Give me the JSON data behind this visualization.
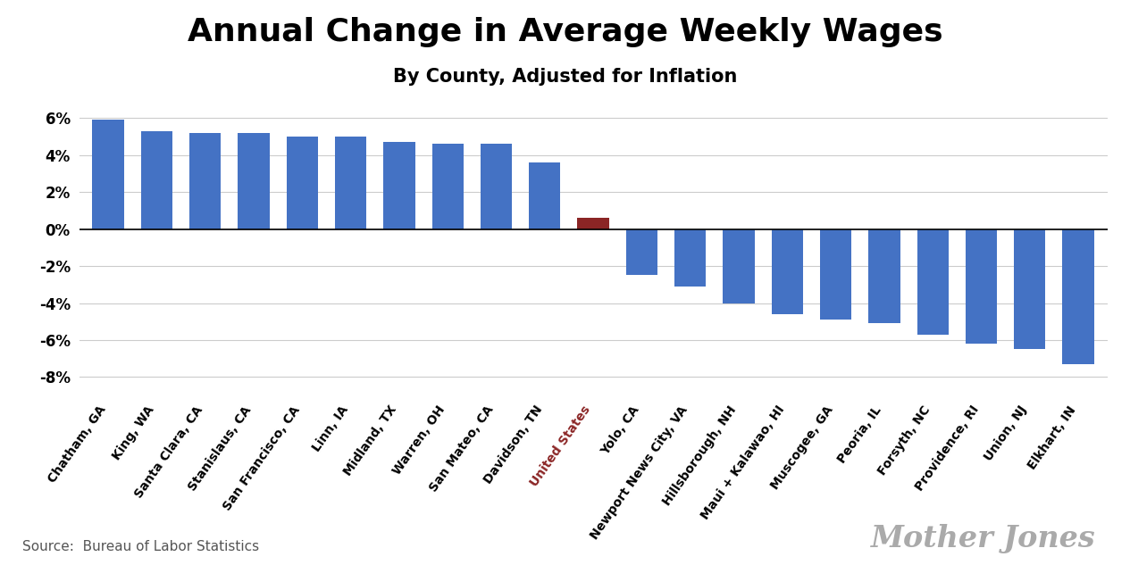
{
  "title": "Annual Change in Average Weekly Wages",
  "subtitle": "By County, Adjusted for Inflation",
  "source": "Source:  Bureau of Labor Statistics",
  "watermark": "Mother Jones",
  "categories": [
    "Chatham, GA",
    "King, WA",
    "Santa Clara, CA",
    "Stanislaus, CA",
    "San Francisco, CA",
    "Linn, IA",
    "Midland, TX",
    "Warren, OH",
    "San Mateo, CA",
    "Davidson, TN",
    "United States",
    "Yolo, CA",
    "Newport News City, VA",
    "Hillsborough, NH",
    "Maui + Kalawao, HI",
    "Muscogee, GA",
    "Peoria, IL",
    "Forsyth, NC",
    "Providence, RI",
    "Union, NJ",
    "Elkhart, IN"
  ],
  "values": [
    5.9,
    5.3,
    5.2,
    5.2,
    5.0,
    5.0,
    4.7,
    4.6,
    4.6,
    3.6,
    0.6,
    -2.5,
    -3.1,
    -4.0,
    -4.6,
    -4.9,
    -5.1,
    -5.7,
    -6.2,
    -6.5,
    -7.3
  ],
  "bar_colors": [
    "#4472C4",
    "#4472C4",
    "#4472C4",
    "#4472C4",
    "#4472C4",
    "#4472C4",
    "#4472C4",
    "#4472C4",
    "#4472C4",
    "#4472C4",
    "#8B2525",
    "#4472C4",
    "#4472C4",
    "#4472C4",
    "#4472C4",
    "#4472C4",
    "#4472C4",
    "#4472C4",
    "#4472C4",
    "#4472C4",
    "#4472C4"
  ],
  "us_label_color": "#8B2525",
  "ylim": [
    -9.0,
    7.5
  ],
  "yticks": [
    -8,
    -6,
    -4,
    -2,
    0,
    2,
    4,
    6
  ],
  "ytick_labels": [
    "-8%",
    "-6%",
    "-4%",
    "-2%",
    "0%",
    "2%",
    "4%",
    "6%"
  ],
  "background_color": "#ffffff",
  "grid_color": "#cccccc",
  "title_fontsize": 26,
  "subtitle_fontsize": 15,
  "tick_fontsize": 12,
  "xtick_fontsize": 10,
  "source_fontsize": 11,
  "watermark_fontsize": 24
}
